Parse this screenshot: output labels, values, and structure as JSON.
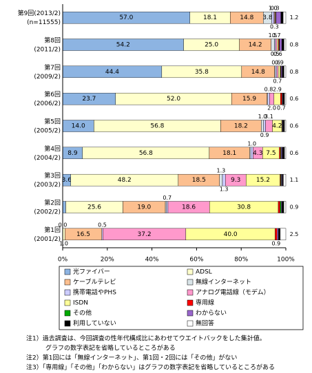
{
  "chart_data": {
    "type": "stacked-bar-horizontal",
    "categories": [
      [
        "第9回(2013/2)",
        "(n=11555)"
      ],
      [
        "第8回",
        "(2011/2)"
      ],
      [
        "第7回",
        "(2009/2)"
      ],
      [
        "第6回",
        "(2006/2)"
      ],
      [
        "第5回",
        "(2005/2)"
      ],
      [
        "第4回",
        "(2004/2)"
      ],
      [
        "第3回",
        "(2003/2)"
      ],
      [
        "第2回",
        "(2002/2)"
      ],
      [
        "第1回",
        "(2001/2)"
      ]
    ],
    "series": [
      {
        "name": "光ファイバー",
        "color": "#8db4e2",
        "values": [
          57.0,
          54.2,
          44.4,
          23.7,
          14.0,
          8.9,
          3.6,
          1.4,
          0.0
        ],
        "value_labels": [
          "57.0",
          "54.2",
          "44.4",
          "23.7",
          "14.0",
          "8.9",
          "3.6",
          null,
          "0.0"
        ]
      },
      {
        "name": "ADSL",
        "color": "#ffffcc",
        "values": [
          18.1,
          25.0,
          35.8,
          52.0,
          56.8,
          56.8,
          48.2,
          25.6,
          1.0
        ],
        "value_labels": [
          "18.1",
          "25.0",
          "35.8",
          "52.0",
          "56.8",
          "56.8",
          "48.2",
          "25.6",
          "1.0"
        ]
      },
      {
        "name": "ケーブルテレビ",
        "color": "#fcbf8f",
        "values": [
          14.8,
          14.2,
          14.8,
          15.9,
          18.2,
          18.1,
          18.5,
          19.0,
          16.5
        ],
        "value_labels": [
          "14.8",
          "14.2",
          "14.8",
          "15.9",
          "18.2",
          "18.1",
          "18.5",
          "19.0",
          "16.5"
        ]
      },
      {
        "name": "無線インターネット",
        "color": "#d9e4e8",
        "values": [
          3.8,
          1.5,
          0.3,
          0.3,
          1.0,
          0.5,
          1.3,
          0.5,
          null
        ],
        "value_labels": [
          "3.8",
          "1.5",
          null,
          null,
          "1.0",
          null,
          "1.3",
          null,
          null
        ]
      },
      {
        "name": "携帯電話やPHS",
        "color": "#ccccff",
        "values": [
          1.0,
          0.5,
          0.6,
          0.8,
          0.9,
          1.0,
          1.3,
          0.7,
          0.5
        ],
        "value_labels": [
          "1.0",
          "0.5",
          "0.6",
          "0.8",
          "0.9",
          "1.0",
          "1.3",
          "0.7",
          "0.5"
        ]
      },
      {
        "name": "アナログ電話線（モデム）",
        "color": "#ff99cc",
        "values": [
          0.3,
          0.7,
          0.7,
          2.0,
          3.1,
          4.3,
          9.3,
          18.6,
          37.2
        ],
        "value_labels": [
          "0.3",
          "0.7",
          "0.7",
          "2.0",
          "3.1",
          "4.3",
          "9.3",
          "18.6",
          "37.2"
        ]
      },
      {
        "name": "ISDN",
        "color": "#ffff99",
        "values": [
          0.3,
          0.6,
          0.9,
          2.9,
          4.2,
          7.5,
          15.2,
          30.8,
          40.0
        ],
        "value_labels": [
          "0.3",
          "0.6",
          "0.9",
          "2.9",
          "4.2",
          "7.5",
          "15.2",
          "30.8",
          "40.0"
        ]
      },
      {
        "name": "専用線",
        "color": "#ff0000",
        "values": [
          0.2,
          0.3,
          0.2,
          0.7,
          0.2,
          0.5,
          0.3,
          0.8,
          0.9
        ],
        "value_labels": [
          null,
          null,
          null,
          "0.7",
          null,
          null,
          null,
          null,
          "0.9"
        ]
      },
      {
        "name": "その他",
        "color": "#00aa00",
        "values": [
          0.1,
          0.2,
          0.2,
          0.2,
          0.2,
          0.3,
          0.3,
          0.5,
          null
        ]
      },
      {
        "name": "わからない",
        "color": "#9966cc",
        "values": [
          2.2,
          1.0,
          0.5,
          0.3,
          0.3,
          0.5,
          0.4,
          0.4,
          0.6
        ]
      },
      {
        "name": "利用していない",
        "color": "#000000",
        "values": [
          1.0,
          1.0,
          0.8,
          0.6,
          0.5,
          1.0,
          0.5,
          0.8,
          0.8
        ]
      },
      {
        "name": "無回答",
        "color": "#ffffff",
        "values": [
          1.2,
          0.8,
          0.8,
          0.6,
          0.6,
          0.6,
          1.1,
          0.9,
          2.5
        ],
        "value_labels": [
          "1.2",
          "0.8",
          "0.8",
          "0.6",
          "0.6",
          "0.6",
          "1.1",
          "0.9",
          "2.5"
        ]
      }
    ],
    "xlim": [
      0,
      100
    ],
    "xticks": [
      {
        "value": 0,
        "label": "0%"
      },
      {
        "value": 20,
        "label": "20%"
      },
      {
        "value": 40,
        "label": "40%"
      },
      {
        "value": 60,
        "label": "60%"
      },
      {
        "value": 80,
        "label": "80%"
      },
      {
        "value": 100,
        "label": "100%"
      }
    ],
    "notes": [
      "注1）過去調査は、今回調査の性年代構成比にあわせてウエイトバックをした集計値。",
      "グラフの数字表記を省略しているところがある",
      "注2）第1回には「無線インターネット」、第1回・2回には「その他」がない",
      "注3）「専用線」「その他」「わからない」はグラフの数字表記を省略しているところがある"
    ]
  }
}
